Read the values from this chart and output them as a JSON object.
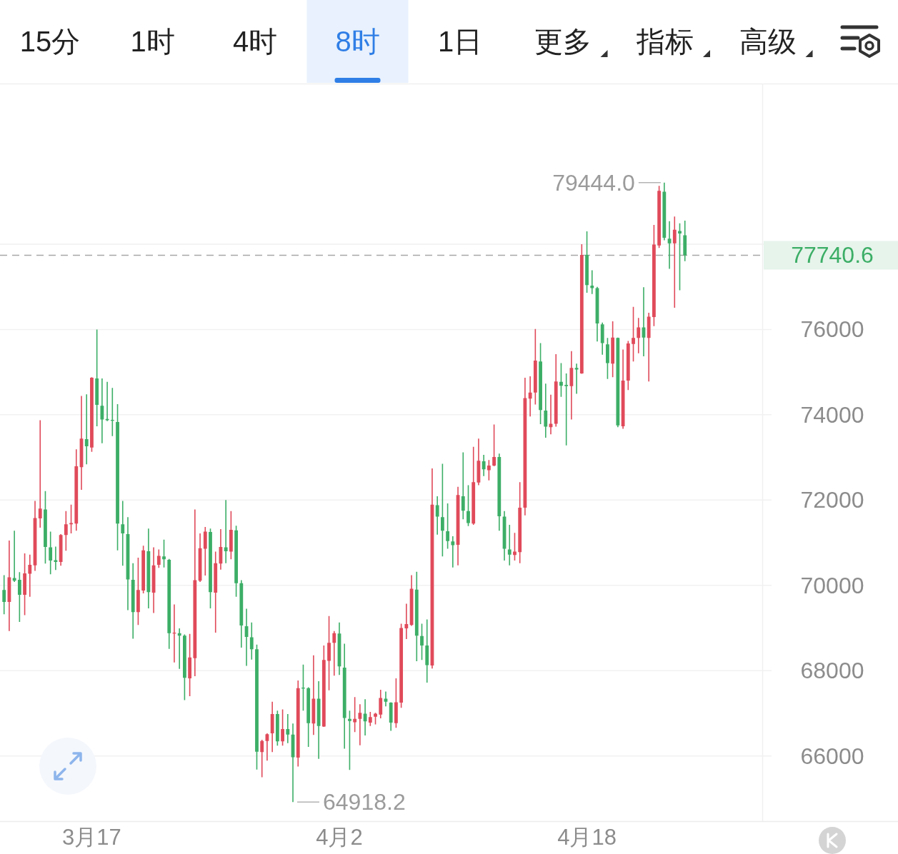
{
  "chart_data": [
    {
      "type": "other",
      "annotations": [
        "15分",
        "1时",
        "4时",
        "8时",
        "1日",
        "更多",
        "指标",
        "高级"
      ]
    },
    {
      "type": "candlestick",
      "annotations": [
        "79444.0",
        "64918.2"
      ],
      "categories": [
        null,
        null,
        null,
        null,
        null,
        null,
        null,
        null,
        null,
        null,
        null,
        null,
        null,
        null,
        null,
        null,
        null,
        "3月17",
        null,
        null,
        null,
        null,
        null,
        null,
        null,
        null,
        null,
        null,
        null,
        null,
        null,
        null,
        null,
        null,
        null,
        null,
        null,
        null,
        null,
        null,
        null,
        null,
        null,
        null,
        null,
        null,
        null,
        null,
        null,
        null,
        null,
        null,
        null,
        null,
        null,
        null,
        null,
        null,
        null,
        null,
        null,
        null,
        null,
        null,
        null,
        "4月2",
        null,
        null,
        null,
        null,
        null,
        null,
        null,
        null,
        null,
        null,
        null,
        null,
        null,
        null,
        null,
        null,
        null,
        null,
        null,
        null,
        null,
        null,
        null,
        null,
        null,
        null,
        null,
        null,
        null,
        null,
        null,
        null,
        null,
        null,
        null,
        null,
        null,
        null,
        null,
        null,
        null,
        null,
        null,
        null,
        null,
        null,
        null,
        "4月18",
        null,
        null,
        null,
        null,
        null,
        null,
        null,
        null,
        null,
        null,
        null,
        null,
        null,
        null,
        null,
        null,
        null,
        null,
        null
      ],
      "ohlc": [
        [
          69890,
          70240,
          69320,
          69610
        ],
        [
          69610,
          71050,
          68930,
          70190
        ],
        [
          70170,
          71280,
          70080,
          70110
        ],
        [
          70130,
          70310,
          69140,
          69780
        ],
        [
          69780,
          70750,
          69300,
          70280
        ],
        [
          70270,
          70720,
          69730,
          70480
        ],
        [
          70470,
          71980,
          70340,
          71580
        ],
        [
          71570,
          73870,
          71350,
          71800
        ],
        [
          71780,
          72210,
          70510,
          70900
        ],
        [
          70890,
          71260,
          70260,
          70580
        ],
        [
          70590,
          70910,
          70360,
          70550
        ],
        [
          70550,
          71200,
          70460,
          71180
        ],
        [
          71180,
          71740,
          70810,
          71430
        ],
        [
          71430,
          71890,
          71220,
          71460
        ],
        [
          71450,
          73190,
          71280,
          72790
        ],
        [
          72770,
          74440,
          72240,
          73440
        ],
        [
          73430,
          74480,
          72840,
          73260
        ],
        [
          73230,
          74880,
          73130,
          74870
        ],
        [
          74850,
          76000,
          73730,
          74230
        ],
        [
          74210,
          74850,
          73330,
          73890
        ],
        [
          73900,
          74770,
          73850,
          73870
        ],
        [
          73880,
          74630,
          73500,
          73860
        ],
        [
          73830,
          74250,
          70820,
          71450
        ],
        [
          71430,
          71980,
          70460,
          71220
        ],
        [
          71200,
          71600,
          69420,
          70140
        ],
        [
          70130,
          70520,
          68750,
          69370
        ],
        [
          69370,
          70650,
          69070,
          69890
        ],
        [
          69880,
          70930,
          69810,
          70820
        ],
        [
          70800,
          71330,
          69460,
          69840
        ],
        [
          69830,
          70890,
          69350,
          70470
        ],
        [
          70480,
          70840,
          70410,
          70690
        ],
        [
          70680,
          71070,
          70420,
          70610
        ],
        [
          70600,
          70620,
          68510,
          68880
        ],
        [
          68870,
          69550,
          68190,
          68890
        ],
        [
          68880,
          68990,
          68040,
          68820
        ],
        [
          68820,
          68850,
          67310,
          67830
        ],
        [
          67820,
          68860,
          67400,
          68310
        ],
        [
          68290,
          71780,
          67870,
          70120
        ],
        [
          70110,
          71220,
          70080,
          70870
        ],
        [
          70860,
          71370,
          70230,
          71260
        ],
        [
          71250,
          71330,
          69460,
          69840
        ],
        [
          69830,
          70790,
          68890,
          70520
        ],
        [
          70510,
          71320,
          70370,
          70900
        ],
        [
          70890,
          72000,
          70520,
          70800
        ],
        [
          70790,
          71740,
          70610,
          71300
        ],
        [
          71290,
          71400,
          69730,
          70050
        ],
        [
          70050,
          70120,
          68540,
          69060
        ],
        [
          69040,
          69450,
          68110,
          68790
        ],
        [
          68780,
          69130,
          68260,
          68500
        ],
        [
          68500,
          68610,
          65680,
          66100
        ],
        [
          66090,
          66380,
          65500,
          66350
        ],
        [
          66350,
          66530,
          65890,
          66510
        ],
        [
          66530,
          67270,
          66090,
          66980
        ],
        [
          66980,
          67060,
          66240,
          66340
        ],
        [
          66340,
          67090,
          66240,
          66630
        ],
        [
          66630,
          66980,
          66300,
          66500
        ],
        [
          66500,
          66760,
          64918.2,
          65970
        ],
        [
          65960,
          67770,
          65750,
          67590
        ],
        [
          67600,
          68140,
          67060,
          67580
        ],
        [
          67590,
          67610,
          66210,
          66770
        ],
        [
          66760,
          68360,
          66490,
          67340
        ],
        [
          67340,
          67750,
          65930,
          66700
        ],
        [
          66690,
          68590,
          66680,
          68250
        ],
        [
          68230,
          69280,
          67540,
          68650
        ],
        [
          68650,
          68930,
          67880,
          68880
        ],
        [
          68870,
          69130,
          67900,
          68100
        ],
        [
          68070,
          68630,
          66170,
          66890
        ],
        [
          66870,
          67060,
          65670,
          66820
        ],
        [
          66790,
          67380,
          66560,
          66870
        ],
        [
          66870,
          67210,
          66250,
          67010
        ],
        [
          66990,
          67330,
          66480,
          66810
        ],
        [
          66780,
          67030,
          66700,
          66910
        ],
        [
          66920,
          67010,
          66740,
          66990
        ],
        [
          66970,
          67550,
          66880,
          67360
        ],
        [
          67340,
          67510,
          67160,
          67270
        ],
        [
          67250,
          67260,
          66590,
          66780
        ],
        [
          66770,
          67820,
          66660,
          67260
        ],
        [
          67250,
          69100,
          67130,
          69000
        ],
        [
          68990,
          69570,
          68740,
          69090
        ],
        [
          69070,
          70240,
          69050,
          69920
        ],
        [
          69900,
          70320,
          68220,
          68820
        ],
        [
          68810,
          69100,
          68250,
          68590
        ],
        [
          68590,
          69200,
          67720,
          68130
        ],
        [
          68120,
          72740,
          68050,
          71890
        ],
        [
          71880,
          72090,
          71190,
          71610
        ],
        [
          71600,
          72850,
          70680,
          71280
        ],
        [
          71270,
          71920,
          70860,
          71040
        ],
        [
          71030,
          71150,
          70420,
          70940
        ],
        [
          70950,
          72310,
          70470,
          72120
        ],
        [
          72090,
          73120,
          71550,
          71750
        ],
        [
          71740,
          72350,
          71390,
          71460
        ],
        [
          71450,
          73250,
          71420,
          72420
        ],
        [
          72410,
          73440,
          72350,
          72920
        ],
        [
          72910,
          73060,
          72560,
          72720
        ],
        [
          72700,
          72940,
          72460,
          72810
        ],
        [
          72810,
          73770,
          72790,
          73010
        ],
        [
          73010,
          73090,
          71280,
          71620
        ],
        [
          71610,
          71740,
          70580,
          70860
        ],
        [
          70840,
          71420,
          70470,
          70720
        ],
        [
          70710,
          71230,
          70580,
          70790
        ],
        [
          70780,
          72420,
          70520,
          71820
        ],
        [
          71820,
          74870,
          71640,
          74390
        ],
        [
          74380,
          74900,
          73960,
          74520
        ],
        [
          74520,
          76010,
          74240,
          75270
        ],
        [
          75250,
          75680,
          73780,
          74110
        ],
        [
          74100,
          74730,
          73460,
          73720
        ],
        [
          73710,
          74470,
          73540,
          73790
        ],
        [
          73790,
          75420,
          73720,
          74780
        ],
        [
          74770,
          75210,
          74420,
          74680
        ],
        [
          74700,
          74970,
          73280,
          74670
        ],
        [
          74670,
          75490,
          73890,
          75100
        ],
        [
          75100,
          75200,
          74490,
          75060
        ],
        [
          74970,
          78000,
          74960,
          77750
        ],
        [
          77750,
          78300,
          76860,
          77040
        ],
        [
          77030,
          77390,
          76830,
          76970
        ],
        [
          76970,
          77000,
          75720,
          76140
        ],
        [
          76120,
          76160,
          75410,
          75680
        ],
        [
          75650,
          75800,
          74840,
          75210
        ],
        [
          75200,
          76190,
          74880,
          75810
        ],
        [
          75800,
          75810,
          73710,
          73750
        ],
        [
          73730,
          75530,
          73670,
          74800
        ],
        [
          74800,
          75730,
          74580,
          75670
        ],
        [
          75660,
          76530,
          75250,
          75800
        ],
        [
          75800,
          76270,
          75440,
          76050
        ],
        [
          76050,
          76990,
          75370,
          75810
        ],
        [
          75800,
          76390,
          74780,
          76300
        ],
        [
          76290,
          78450,
          76080,
          77990
        ],
        [
          77970,
          79370,
          77910,
          79250
        ],
        [
          79230,
          79444.0,
          78090,
          78150
        ],
        [
          78130,
          78540,
          77420,
          78020
        ],
        [
          78020,
          78650,
          76510,
          78340
        ],
        [
          78310,
          78490,
          76920,
          78250
        ],
        [
          78210,
          78550,
          77600,
          77740.6
        ]
      ],
      "colors": [
        "#3cae66",
        "#e04a5a",
        "#3cae66",
        "#3cae66",
        "#e04a5a",
        "#e04a5a",
        "#e04a5a",
        "#e04a5a",
        "#3cae66",
        "#3cae66",
        "#3cae66",
        "#e04a5a",
        "#e04a5a",
        "#e04a5a",
        "#e04a5a",
        "#e04a5a",
        "#3cae66",
        "#e04a5a",
        "#3cae66",
        "#3cae66",
        "#3cae66",
        "#3cae66",
        "#3cae66",
        "#3cae66",
        "#3cae66",
        "#3cae66",
        "#e04a5a",
        "#e04a5a",
        "#3cae66",
        "#e04a5a",
        "#e04a5a",
        "#3cae66",
        "#3cae66",
        "#e04a5a",
        "#3cae66",
        "#3cae66",
        "#e04a5a",
        "#e04a5a",
        "#e04a5a",
        "#e04a5a",
        "#3cae66",
        "#e04a5a",
        "#e04a5a",
        "#3cae66",
        "#e04a5a",
        "#3cae66",
        "#3cae66",
        "#3cae66",
        "#3cae66",
        "#3cae66",
        "#e04a5a",
        "#e04a5a",
        "#e04a5a",
        "#3cae66",
        "#e04a5a",
        "#3cae66",
        "#3cae66",
        "#e04a5a",
        "#3cae66",
        "#3cae66",
        "#e04a5a",
        "#3cae66",
        "#e04a5a",
        "#e04a5a",
        "#e04a5a",
        "#3cae66",
        "#3cae66",
        "#3cae66",
        "#e04a5a",
        "#e04a5a",
        "#3cae66",
        "#e04a5a",
        "#e04a5a",
        "#e04a5a",
        "#3cae66",
        "#3cae66",
        "#e04a5a",
        "#e04a5a",
        "#e04a5a",
        "#e04a5a",
        "#3cae66",
        "#3cae66",
        "#3cae66",
        "#e04a5a",
        "#3cae66",
        "#3cae66",
        "#3cae66",
        "#3cae66",
        "#e04a5a",
        "#3cae66",
        "#3cae66",
        "#e04a5a",
        "#e04a5a",
        "#3cae66",
        "#e04a5a",
        "#e04a5a",
        "#3cae66",
        "#3cae66",
        "#3cae66",
        "#e04a5a",
        "#e04a5a",
        "#e04a5a",
        "#e04a5a",
        "#e04a5a",
        "#3cae66",
        "#3cae66",
        "#e04a5a",
        "#e04a5a",
        "#3cae66",
        "#3cae66",
        "#e04a5a",
        "#3cae66",
        "#e04a5a",
        "#3cae66",
        "#3cae66",
        "#3cae66",
        "#3cae66",
        "#3cae66",
        "#e04a5a",
        "#3cae66",
        "#e04a5a",
        "#e04a5a",
        "#e04a5a",
        "#e04a5a",
        "#3cae66",
        "#e04a5a",
        "#e04a5a",
        "#e04a5a",
        "#3cae66",
        "#3cae66",
        "#e04a5a",
        "#3cae66",
        "#3cae66"
      ],
      "ylim": [
        64470,
        81750
      ],
      "yticks": [
        66000,
        68000,
        70000,
        72000,
        74000,
        76000,
        {
          "value": 78000,
          "label": null
        }
      ],
      "grid": "y",
      "ref_lines": [
        {
          "axis": "y",
          "value": 77740.6,
          "label": "77740.6",
          "color": "#a6a6a6",
          "line_style": "dashed"
        }
      ]
    }
  ]
}
